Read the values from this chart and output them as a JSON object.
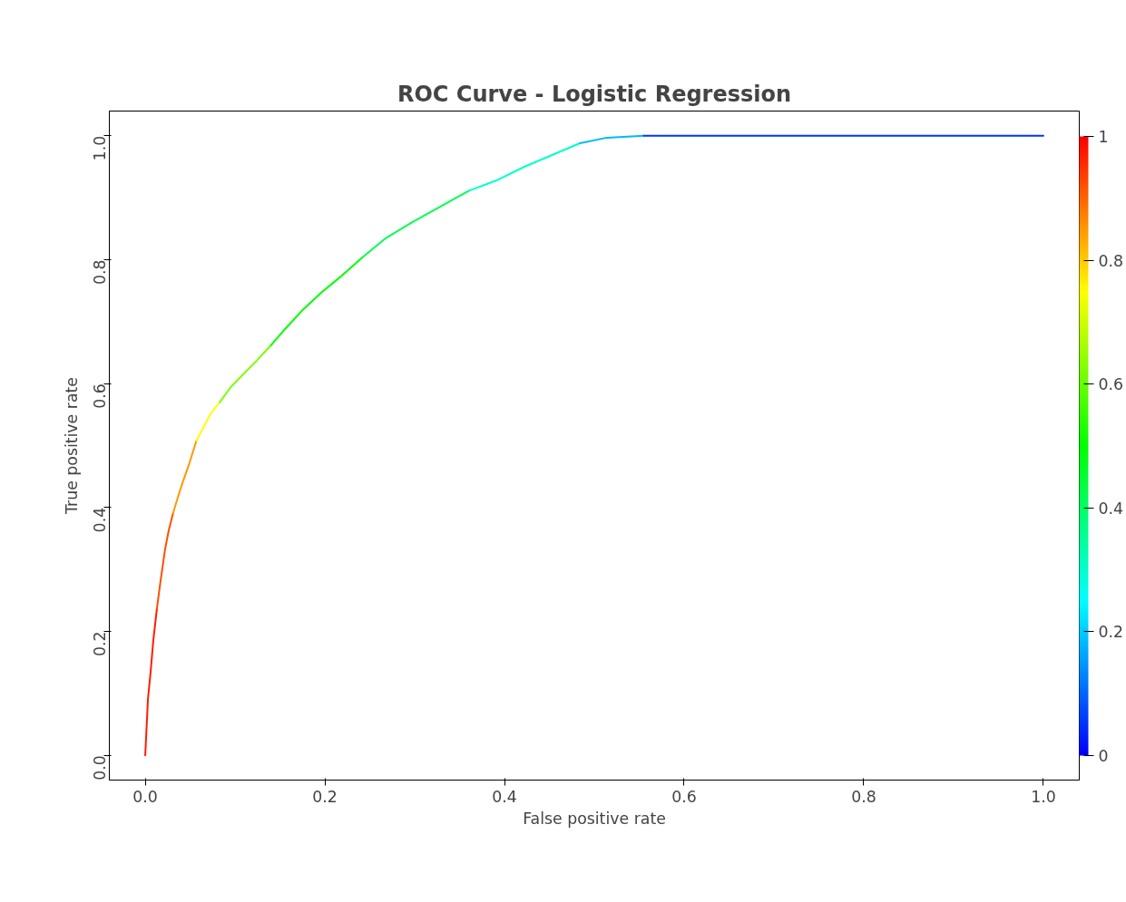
{
  "chart_data": {
    "type": "line",
    "title": "ROC Curve - Logistic Regression",
    "xlabel": "False positive rate",
    "ylabel": "True positive rate",
    "series": [
      {
        "color": "#ff1e00",
        "x": [
          0,
          0.003,
          0.006,
          0.009,
          0.013
        ],
        "values": [
          0,
          0.091,
          0.135,
          0.186,
          0.237
        ]
      },
      {
        "color": "#ff5000",
        "x": [
          0.013,
          0.017,
          0.022,
          0.026,
          0.031
        ],
        "values": [
          0.237,
          0.281,
          0.332,
          0.362,
          0.391
        ]
      },
      {
        "color": "#ff9900",
        "x": [
          0.031,
          0.037,
          0.042,
          0.049,
          0.057
        ],
        "values": [
          0.391,
          0.42,
          0.442,
          0.471,
          0.508
        ]
      },
      {
        "color": "#ffff00",
        "x": [
          0.057,
          0.065,
          0.073,
          0.083
        ],
        "values": [
          0.508,
          0.53,
          0.552,
          0.57
        ]
      },
      {
        "color": "#7aff00",
        "x": [
          0.083,
          0.095,
          0.109,
          0.124,
          0.14
        ],
        "values": [
          0.57,
          0.594,
          0.615,
          0.637,
          0.662
        ]
      },
      {
        "color": "#00ff00",
        "x": [
          0.14,
          0.155,
          0.176,
          0.196,
          0.217,
          0.242
        ],
        "values": [
          0.662,
          0.687,
          0.72,
          0.747,
          0.772,
          0.804
        ]
      },
      {
        "color": "#00ff51",
        "x": [
          0.242,
          0.268,
          0.299,
          0.33,
          0.36
        ],
        "values": [
          0.804,
          0.835,
          0.862,
          0.887,
          0.911
        ]
      },
      {
        "color": "#00ffcc",
        "x": [
          0.36,
          0.391,
          0.422,
          0.453,
          0.484
        ],
        "values": [
          0.911,
          0.928,
          0.95,
          0.969,
          0.988
        ]
      },
      {
        "color": "#00b7ff",
        "x": [
          0.484,
          0.514,
          0.555
        ],
        "values": [
          0.988,
          0.997,
          1.0
        ]
      },
      {
        "color": "#0033ff",
        "x": [
          0.555,
          0.7,
          1.0
        ],
        "values": [
          1.0,
          1.0,
          1.0
        ]
      }
    ],
    "clim": [
      0,
      1
    ],
    "cticks": [
      0,
      0.2,
      0.4,
      0.6,
      0.8,
      1
    ],
    "xlim": [
      -0.04,
      1.04
    ],
    "ylim": [
      -0.04,
      1.04
    ],
    "xticks": [
      {
        "value": 0,
        "label": "0.0"
      },
      0.2,
      0.4,
      0.6,
      0.8,
      {
        "value": 1,
        "label": "1.0"
      }
    ],
    "yticks": [
      {
        "value": 0,
        "label": "0.0"
      },
      0.2,
      0.4,
      0.6,
      0.8,
      {
        "value": 1,
        "label": "1.0"
      }
    ],
    "grid": false
  }
}
